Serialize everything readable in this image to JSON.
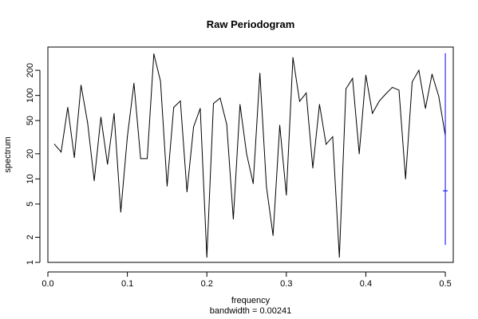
{
  "chart_data": {
    "type": "line",
    "title": "Raw Periodogram",
    "xlabel": "frequency",
    "sublabel": "bandwidth = 0.00241",
    "ylabel": "spectrum",
    "y_scale": "log",
    "xlim": [
      0.0,
      0.51
    ],
    "ylim": [
      1,
      380
    ],
    "x_ticks": [
      "0.0",
      "0.1",
      "0.2",
      "0.3",
      "0.4",
      "0.5"
    ],
    "y_ticks": [
      "1",
      "2",
      "5",
      "10",
      "20",
      "50",
      "100",
      "200"
    ],
    "grid": false,
    "line_color": "#000000",
    "ci_color": "#0000ff",
    "series": [
      {
        "x": [
          0.0083,
          0.0167,
          0.025,
          0.0333,
          0.0417,
          0.05,
          0.0583,
          0.0667,
          0.075,
          0.0833,
          0.0917,
          0.1,
          0.1083,
          0.1167,
          0.125,
          0.1333,
          0.1417,
          0.15,
          0.1583,
          0.1667,
          0.175,
          0.1833,
          0.1917,
          0.2,
          0.2083,
          0.2167,
          0.225,
          0.2333,
          0.2417,
          0.25,
          0.2583,
          0.2667,
          0.275,
          0.2833,
          0.2917,
          0.3,
          0.3083,
          0.3167,
          0.325,
          0.3333,
          0.3417,
          0.35,
          0.3583,
          0.3667,
          0.375,
          0.3833,
          0.3917,
          0.4,
          0.4083,
          0.4167,
          0.425,
          0.4333,
          0.4417,
          0.45,
          0.4583,
          0.4667,
          0.475,
          0.4833,
          0.4917,
          0.5
        ],
        "values": [
          26,
          21,
          72,
          18,
          133,
          47,
          9.5,
          55,
          15,
          61,
          4.0,
          32,
          140,
          17.5,
          17.5,
          315,
          148,
          8.2,
          72,
          86,
          7.0,
          42,
          70,
          1.15,
          80,
          93,
          45,
          3.3,
          78,
          20,
          8.8,
          185,
          8.0,
          2.1,
          44,
          6.4,
          285,
          85,
          107,
          13.5,
          78,
          26,
          32,
          1.15,
          120,
          160,
          20,
          175,
          61,
          85,
          104,
          125,
          116,
          10,
          145,
          200,
          70,
          180,
          98,
          33
        ]
      }
    ],
    "ci_bar": {
      "x": 0.5,
      "center": 7.2,
      "lower": 1.62,
      "upper": 320
    }
  }
}
